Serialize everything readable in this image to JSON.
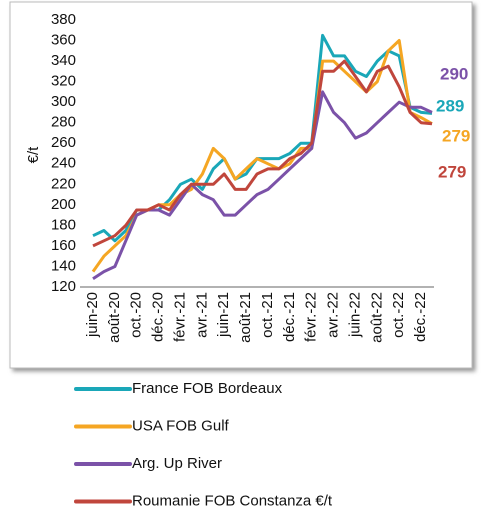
{
  "chart_data": {
    "type": "line",
    "ylabel": "€/t",
    "categories": [
      "juin-20",
      null,
      "août-20",
      null,
      "oct.-20",
      null,
      "déc.-20",
      null,
      "févr.-21",
      null,
      "avr.-21",
      null,
      "juin-21",
      null,
      "août-21",
      null,
      "oct.-21",
      null,
      "déc.-21",
      null,
      "févr.-22",
      null,
      "avr.-22",
      null,
      "juin-22",
      null,
      "août-22",
      null,
      "oct.-22",
      null,
      "déc.-22",
      null
    ],
    "series": [
      {
        "name": "France FOB Bordeaux",
        "color": "#1aa7b8",
        "values": [
          170,
          175,
          165,
          175,
          195,
          195,
          195,
          205,
          220,
          225,
          215,
          235,
          245,
          225,
          230,
          245,
          245,
          245,
          250,
          260,
          260,
          365,
          345,
          345,
          330,
          325,
          340,
          350,
          345,
          295,
          290,
          289
        ]
      },
      {
        "name": "USA FOB Gulf",
        "color": "#f5a623",
        "values": [
          135,
          150,
          160,
          170,
          190,
          195,
          200,
          200,
          210,
          215,
          230,
          255,
          245,
          225,
          235,
          245,
          240,
          235,
          240,
          255,
          255,
          340,
          340,
          330,
          320,
          310,
          320,
          350,
          360,
          290,
          285,
          279
        ]
      },
      {
        "name": "Arg. Up River",
        "color": "#7b52a8",
        "values": [
          128,
          135,
          140,
          165,
          190,
          195,
          195,
          190,
          205,
          220,
          210,
          205,
          190,
          190,
          200,
          210,
          215,
          225,
          235,
          245,
          255,
          310,
          290,
          280,
          265,
          270,
          280,
          290,
          300,
          295,
          295,
          290
        ]
      },
      {
        "name": "Roumanie FOB Constanza €/t",
        "color": "#c0463c",
        "values": [
          160,
          165,
          170,
          180,
          195,
          195,
          200,
          195,
          210,
          220,
          220,
          220,
          230,
          215,
          215,
          230,
          235,
          235,
          245,
          250,
          260,
          330,
          330,
          340,
          325,
          310,
          330,
          335,
          315,
          290,
          280,
          279
        ]
      }
    ],
    "ylim": [
      120,
      380
    ],
    "yticks": [
      120,
      140,
      160,
      180,
      200,
      220,
      240,
      260,
      280,
      300,
      320,
      340,
      360,
      380
    ],
    "grid": false
  }
}
